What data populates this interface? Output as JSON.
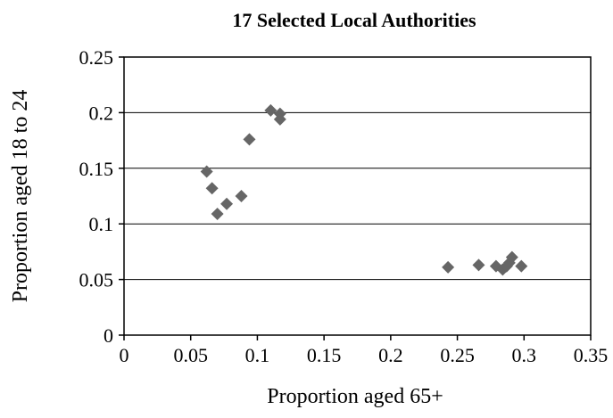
{
  "chart_data": {
    "type": "scatter",
    "title": "17 Selected Local Authorities",
    "xlabel": "Proportion aged 65+",
    "ylabel": "Proportion aged 18 to 24",
    "xlim": [
      0,
      0.35
    ],
    "ylim": [
      0,
      0.25
    ],
    "x_ticks": [
      "0",
      "0.05",
      "0.1",
      "0.15",
      "0.2",
      "0.25",
      "0.3",
      "0.35"
    ],
    "y_ticks": [
      "0",
      "0.05",
      "0.1",
      "0.15",
      "0.2",
      "0.25"
    ],
    "grid": "horizontal",
    "marker": "diamond",
    "marker_color": "#666666",
    "points": [
      {
        "x": 0.062,
        "y": 0.147
      },
      {
        "x": 0.066,
        "y": 0.132
      },
      {
        "x": 0.07,
        "y": 0.109
      },
      {
        "x": 0.077,
        "y": 0.118
      },
      {
        "x": 0.088,
        "y": 0.125
      },
      {
        "x": 0.094,
        "y": 0.176
      },
      {
        "x": 0.11,
        "y": 0.202
      },
      {
        "x": 0.117,
        "y": 0.199
      },
      {
        "x": 0.117,
        "y": 0.194
      },
      {
        "x": 0.243,
        "y": 0.061
      },
      {
        "x": 0.266,
        "y": 0.063
      },
      {
        "x": 0.279,
        "y": 0.062
      },
      {
        "x": 0.284,
        "y": 0.059
      },
      {
        "x": 0.287,
        "y": 0.062
      },
      {
        "x": 0.289,
        "y": 0.065
      },
      {
        "x": 0.291,
        "y": 0.07
      },
      {
        "x": 0.298,
        "y": 0.062
      }
    ]
  }
}
